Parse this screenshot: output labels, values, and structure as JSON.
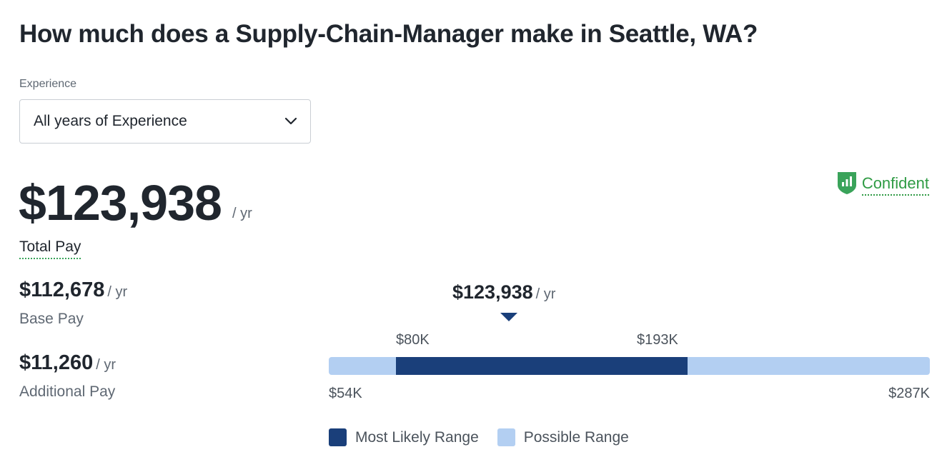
{
  "header": {
    "title": "How much does a Supply-Chain-Manager make in Seattle, WA?"
  },
  "experience": {
    "label": "Experience",
    "selected": "All years of Experience",
    "icon": "chevron-down-icon"
  },
  "confidence": {
    "label": "Confident",
    "icon": "shield-bar-chart-icon",
    "color": "#2f9b44"
  },
  "total_pay": {
    "amount": "$123,938",
    "unit": "/ yr",
    "label": "Total Pay"
  },
  "base_pay": {
    "amount": "$112,678",
    "unit": "/ yr",
    "label": "Base Pay"
  },
  "additional_pay": {
    "amount": "$11,260",
    "unit": "/ yr",
    "label": "Additional Pay"
  },
  "range": {
    "marker_amount": "$123,938",
    "marker_unit": "/ yr",
    "marker_value": 123938,
    "min_value": 54000,
    "max_value": 287000,
    "likely_low_value": 80000,
    "likely_high_value": 193000,
    "min_label": "$54K",
    "max_label": "$287K",
    "likely_low_label": "$80K",
    "likely_high_label": "$193K",
    "colors": {
      "likely": "#1a3f7a",
      "possible": "#b3cff2"
    }
  },
  "legend": {
    "likely": "Most Likely Range",
    "possible": "Possible Range"
  }
}
